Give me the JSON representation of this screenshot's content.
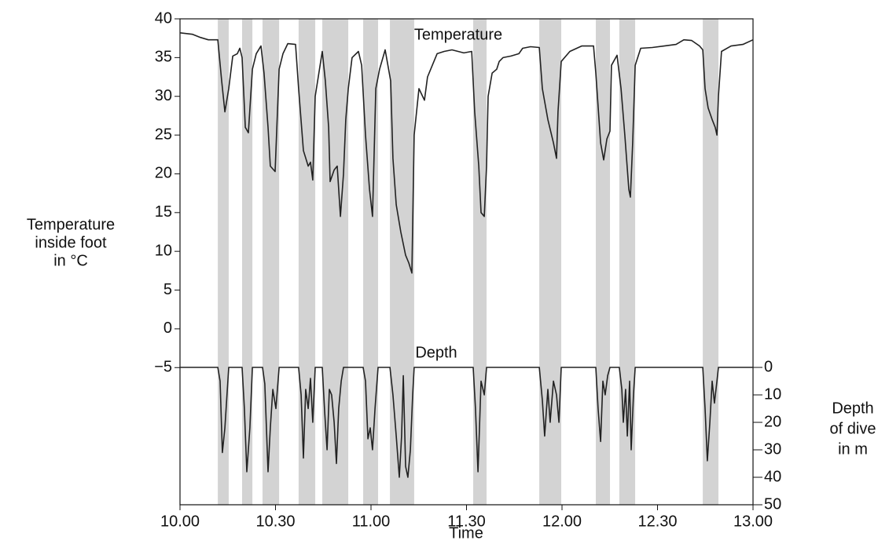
{
  "chart_data": {
    "type": "line",
    "xlabel": "Time",
    "ylabel": [
      "Temperature",
      "inside foot",
      "in °C"
    ],
    "y2label": [
      "Depth",
      "of dive",
      "in m"
    ],
    "xlim": [
      10,
      13
    ],
    "xticks": [
      {
        "value": 10,
        "label": "10.00"
      },
      {
        "value": 10.5,
        "label": "10.30"
      },
      {
        "value": 11,
        "label": "11.00"
      },
      {
        "value": 11.5,
        "label": "11.30"
      },
      {
        "value": 12,
        "label": "12.00"
      },
      {
        "value": 12.5,
        "label": "12.30"
      },
      {
        "value": 13,
        "label": "13.00"
      }
    ],
    "ylim": [
      -22.7,
      40
    ],
    "yticks": [
      {
        "value": -5,
        "label": "−5"
      },
      0,
      5,
      10,
      15,
      20,
      25,
      30,
      35,
      40
    ],
    "y2lim": [
      50,
      -126.9
    ],
    "y2ticks": [
      0,
      10,
      20,
      30,
      40,
      50
    ],
    "dive_color": "#d3d3d3",
    "dives": [
      [
        10.198,
        10.255
      ],
      [
        10.325,
        10.379
      ],
      [
        10.432,
        10.519
      ],
      [
        10.621,
        10.708
      ],
      [
        10.745,
        10.881
      ],
      [
        10.959,
        11.037
      ],
      [
        11.099,
        11.226
      ],
      [
        11.535,
        11.605
      ],
      [
        11.881,
        11.996
      ],
      [
        12.177,
        12.251
      ],
      [
        12.3,
        12.383
      ],
      [
        12.737,
        12.819
      ]
    ],
    "series": [
      {
        "name": "Temperature",
        "color": "#222222",
        "x": [
          10.0,
          10.066,
          10.107,
          10.148,
          10.198,
          10.218,
          10.235,
          10.255,
          10.276,
          10.3,
          10.313,
          10.325,
          10.342,
          10.358,
          10.379,
          10.399,
          10.424,
          10.44,
          10.461,
          10.473,
          10.498,
          10.519,
          10.539,
          10.564,
          10.605,
          10.621,
          10.646,
          10.671,
          10.683,
          10.695,
          10.708,
          10.724,
          10.745,
          10.761,
          10.778,
          10.786,
          10.807,
          10.823,
          10.84,
          10.856,
          10.868,
          10.881,
          10.901,
          10.934,
          10.951,
          10.971,
          10.992,
          11.008,
          11.025,
          11.045,
          11.074,
          11.103,
          11.115,
          11.132,
          11.156,
          11.181,
          11.198,
          11.214,
          11.226,
          11.251,
          11.28,
          11.296,
          11.321,
          11.346,
          11.383,
          11.424,
          11.486,
          11.527,
          11.543,
          11.564,
          11.576,
          11.593,
          11.605,
          11.613,
          11.634,
          11.658,
          11.671,
          11.691,
          11.733,
          11.774,
          11.794,
          11.835,
          11.881,
          11.897,
          11.926,
          11.955,
          11.971,
          11.979,
          11.996,
          12.041,
          12.103,
          12.165,
          12.177,
          12.202,
          12.218,
          12.235,
          12.251,
          12.259,
          12.288,
          12.309,
          12.329,
          12.35,
          12.358,
          12.37,
          12.383,
          12.412,
          12.473,
          12.535,
          12.597,
          12.638,
          12.679,
          12.72,
          12.737,
          12.749,
          12.765,
          12.786,
          12.802,
          12.811,
          12.819,
          12.835,
          12.885,
          12.947,
          13.0
        ],
        "values": [
          38.2,
          38,
          37.6,
          37.3,
          37.3,
          32,
          28,
          31,
          35.2,
          35.5,
          36.2,
          35,
          26,
          25.3,
          33.5,
          35.5,
          36.5,
          33,
          26,
          21,
          20.3,
          33.5,
          35.5,
          36.8,
          36.7,
          31,
          23,
          21,
          21.5,
          19.2,
          30,
          32.5,
          35.8,
          32,
          26,
          19,
          20.5,
          21,
          14.5,
          20,
          27,
          31,
          35,
          35.8,
          34,
          25,
          18,
          14.5,
          31,
          33.5,
          36,
          32,
          22,
          16,
          12.5,
          9.5,
          8.5,
          7.2,
          25,
          31,
          29.5,
          32.5,
          34,
          35.5,
          35.8,
          36,
          35.6,
          35.8,
          28,
          21,
          15,
          14.5,
          21,
          30,
          33,
          33.5,
          34.5,
          35,
          35.2,
          35.5,
          36.2,
          36.4,
          36.3,
          31,
          27,
          24,
          22,
          28,
          34.5,
          35.8,
          36.5,
          36.5,
          33,
          24,
          21.8,
          24.5,
          25.5,
          34,
          35.3,
          31,
          25,
          18,
          17,
          24,
          34,
          36.2,
          36.3,
          36.5,
          36.7,
          37.3,
          37.2,
          36.5,
          36,
          31,
          28.5,
          27,
          26,
          25,
          30,
          35.8,
          36.5,
          36.7,
          37.3
        ]
      },
      {
        "name": "Depth",
        "color": "#222222",
        "axis": "y2",
        "x": [
          10.0,
          10.198,
          10.21,
          10.222,
          10.235,
          10.255,
          10.325,
          10.337,
          10.35,
          10.366,
          10.379,
          10.432,
          10.444,
          10.461,
          10.473,
          10.486,
          10.502,
          10.519,
          10.621,
          10.634,
          10.646,
          10.658,
          10.671,
          10.683,
          10.695,
          10.708,
          10.745,
          10.757,
          10.77,
          10.782,
          10.794,
          10.807,
          10.819,
          10.831,
          10.844,
          10.856,
          10.881,
          10.959,
          10.971,
          10.984,
          10.996,
          11.008,
          11.021,
          11.037,
          11.099,
          11.115,
          11.132,
          11.148,
          11.16,
          11.169,
          11.181,
          11.193,
          11.206,
          11.218,
          11.226,
          11.535,
          11.547,
          11.56,
          11.576,
          11.593,
          11.605,
          11.881,
          11.897,
          11.909,
          11.926,
          11.938,
          11.955,
          11.971,
          11.984,
          11.996,
          12.177,
          12.189,
          12.202,
          12.214,
          12.226,
          12.239,
          12.251,
          12.3,
          12.313,
          12.321,
          12.333,
          12.342,
          12.354,
          12.362,
          12.374,
          12.383,
          12.737,
          12.749,
          12.761,
          12.774,
          12.786,
          12.798,
          12.811,
          12.819,
          13.0
        ],
        "values": [
          0,
          0,
          5,
          31,
          22,
          0,
          0,
          15,
          38,
          22,
          0,
          0,
          6,
          38,
          22,
          8,
          15,
          0,
          0,
          10,
          33,
          8,
          15,
          4,
          20,
          0,
          0,
          16,
          30,
          8,
          10,
          20,
          35,
          15,
          5,
          0,
          0,
          0,
          5,
          26,
          22,
          30,
          15,
          0,
          0,
          10,
          25,
          40,
          25,
          3,
          36,
          40,
          30,
          10,
          0,
          0,
          15,
          38,
          5,
          10,
          0,
          0,
          12,
          25,
          8,
          20,
          5,
          10,
          20,
          0,
          0,
          15,
          27,
          5,
          10,
          3,
          0,
          0,
          8,
          20,
          8,
          25,
          5,
          30,
          10,
          0,
          0,
          15,
          34,
          20,
          5,
          13,
          5,
          0,
          0
        ]
      }
    ]
  }
}
